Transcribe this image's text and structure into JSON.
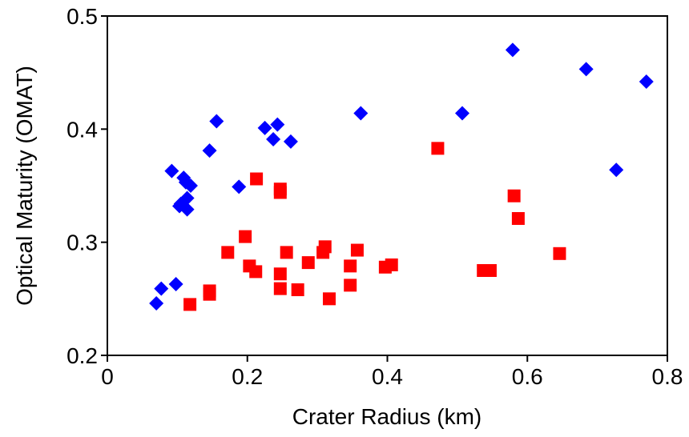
{
  "chart_data": {
    "type": "scatter",
    "xlabel": "Crater Radius (km)",
    "ylabel": "Optical Maturity (OMAT)",
    "xlim": [
      0,
      0.8
    ],
    "ylim": [
      0.2,
      0.5
    ],
    "xticks": [
      0,
      0.2,
      0.4,
      0.6,
      0.8
    ],
    "yticks": [
      0.2,
      0.3,
      0.4,
      0.5
    ],
    "series": [
      {
        "color": "#0000ff",
        "marker": "diamond",
        "x": [
          0.07,
          0.077,
          0.098,
          0.092,
          0.103,
          0.105,
          0.109,
          0.112,
          0.114,
          0.114,
          0.119,
          0.146,
          0.156,
          0.188,
          0.225,
          0.237,
          0.243,
          0.262,
          0.362,
          0.507,
          0.579,
          0.684,
          0.727,
          0.77
        ],
        "values": [
          0.246,
          0.259,
          0.263,
          0.363,
          0.332,
          0.334,
          0.357,
          0.353,
          0.339,
          0.329,
          0.35,
          0.381,
          0.407,
          0.349,
          0.401,
          0.391,
          0.404,
          0.389,
          0.414,
          0.414,
          0.47,
          0.453,
          0.364,
          0.442
        ]
      },
      {
        "color": "#ff0000",
        "marker": "square",
        "x": [
          0.118,
          0.146,
          0.146,
          0.172,
          0.197,
          0.203,
          0.212,
          0.213,
          0.247,
          0.247,
          0.247,
          0.247,
          0.256,
          0.272,
          0.287,
          0.308,
          0.311,
          0.317,
          0.347,
          0.347,
          0.357,
          0.397,
          0.406,
          0.472,
          0.537,
          0.547,
          0.581,
          0.587,
          0.646
        ],
        "values": [
          0.245,
          0.254,
          0.257,
          0.291,
          0.305,
          0.279,
          0.274,
          0.356,
          0.347,
          0.344,
          0.272,
          0.259,
          0.291,
          0.258,
          0.282,
          0.291,
          0.296,
          0.25,
          0.279,
          0.262,
          0.293,
          0.278,
          0.28,
          0.383,
          0.275,
          0.275,
          0.341,
          0.321,
          0.29
        ]
      }
    ]
  }
}
